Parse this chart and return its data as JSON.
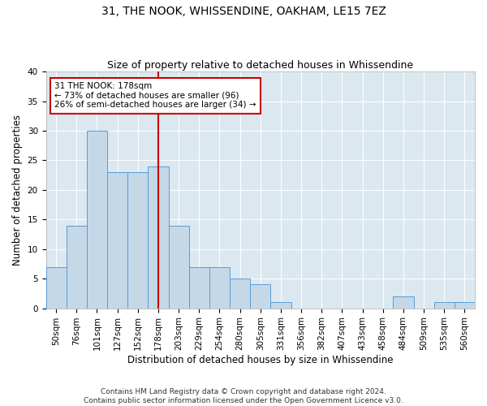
{
  "title": "31, THE NOOK, WHISSENDINE, OAKHAM, LE15 7EZ",
  "subtitle": "Size of property relative to detached houses in Whissendine",
  "xlabel": "Distribution of detached houses by size in Whissendine",
  "ylabel": "Number of detached properties",
  "categories": [
    "50sqm",
    "76sqm",
    "101sqm",
    "127sqm",
    "152sqm",
    "178sqm",
    "203sqm",
    "229sqm",
    "254sqm",
    "280sqm",
    "305sqm",
    "331sqm",
    "356sqm",
    "382sqm",
    "407sqm",
    "433sqm",
    "458sqm",
    "484sqm",
    "509sqm",
    "535sqm",
    "560sqm"
  ],
  "values": [
    7,
    14,
    30,
    23,
    23,
    24,
    14,
    7,
    7,
    5,
    4,
    1,
    0,
    0,
    0,
    0,
    0,
    2,
    0,
    1,
    1
  ],
  "bar_color": "#c5d8e8",
  "bar_edge_color": "#5b9bd5",
  "property_line_x": 5,
  "property_line_label": "31 THE NOOK: 178sqm",
  "annotation_line1": "← 73% of detached houses are smaller (96)",
  "annotation_line2": "26% of semi-detached houses are larger (34) →",
  "annotation_box_color": "#ffffff",
  "annotation_box_edge_color": "#cc0000",
  "annotation_text_color": "#000000",
  "vline_color": "#cc0000",
  "ylim": [
    0,
    40
  ],
  "yticks": [
    0,
    5,
    10,
    15,
    20,
    25,
    30,
    35,
    40
  ],
  "background_color": "#dce8f0",
  "footer_line1": "Contains HM Land Registry data © Crown copyright and database right 2024.",
  "footer_line2": "Contains public sector information licensed under the Open Government Licence v3.0.",
  "title_fontsize": 10,
  "subtitle_fontsize": 9,
  "xlabel_fontsize": 8.5,
  "ylabel_fontsize": 8.5,
  "tick_fontsize": 7.5,
  "footer_fontsize": 6.5
}
